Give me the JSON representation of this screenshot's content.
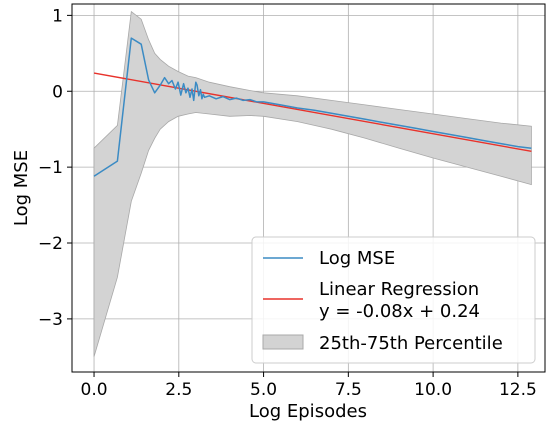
{
  "chart_data": {
    "type": "line",
    "xlabel": "Log Episodes",
    "ylabel": "Log MSE",
    "xlim": [
      -0.65,
      13.3
    ],
    "ylim": [
      -3.7,
      1.15
    ],
    "xticks": [
      0.0,
      2.5,
      5.0,
      7.5,
      10.0,
      12.5
    ],
    "xtick_labels": [
      "0.0",
      "2.5",
      "5.0",
      "7.5",
      "10.0",
      "12.5"
    ],
    "yticks": [
      1,
      0,
      -1,
      -2,
      -3
    ],
    "ytick_labels": [
      "1",
      "0",
      "−1",
      "−2",
      "−3"
    ],
    "grid": true,
    "legend_position": "bottom-right",
    "colors": {
      "mse": "#3b8bc4",
      "regression": "#e8322b",
      "band": "#d3d3d3",
      "band_edge": "#a8a8a8"
    },
    "series": [
      {
        "name": "Log MSE",
        "kind": "line",
        "x": [
          0.0,
          0.69,
          1.1,
          1.39,
          1.61,
          1.79,
          1.95,
          2.08,
          2.2,
          2.3,
          2.4,
          2.48,
          2.56,
          2.64,
          2.71,
          2.77,
          2.83,
          2.89,
          2.94,
          3.0,
          3.04,
          3.09,
          3.14,
          3.18,
          3.22,
          3.26,
          3.4,
          3.6,
          3.8,
          4.0,
          4.2,
          4.4,
          4.6,
          4.8,
          5.0,
          5.5,
          6.0,
          6.5,
          7.0,
          7.5,
          8.0,
          8.5,
          9.0,
          9.5,
          10.0,
          10.5,
          11.0,
          11.5,
          12.0,
          12.5,
          12.9
        ],
        "y": [
          -1.12,
          -0.92,
          0.7,
          0.62,
          0.15,
          -0.02,
          0.08,
          0.18,
          0.1,
          0.14,
          0.03,
          0.12,
          -0.05,
          0.1,
          -0.02,
          0.04,
          -0.08,
          0.03,
          -0.12,
          0.12,
          0.08,
          -0.06,
          0.02,
          -0.1,
          -0.04,
          -0.08,
          -0.06,
          -0.1,
          -0.07,
          -0.11,
          -0.09,
          -0.12,
          -0.11,
          -0.14,
          -0.14,
          -0.18,
          -0.22,
          -0.25,
          -0.29,
          -0.33,
          -0.37,
          -0.41,
          -0.45,
          -0.49,
          -0.53,
          -0.57,
          -0.61,
          -0.65,
          -0.69,
          -0.73,
          -0.75
        ]
      },
      {
        "name": "Linear Regression\ny = -0.08x + 0.24",
        "kind": "line",
        "slope": -0.08,
        "intercept": 0.24,
        "x": [
          0.0,
          12.9
        ],
        "y": [
          0.24,
          -0.792
        ]
      },
      {
        "name": "25th-75th Percentile",
        "kind": "band",
        "x": [
          0.0,
          0.69,
          1.1,
          1.39,
          1.61,
          1.79,
          1.95,
          2.2,
          2.48,
          2.77,
          3.0,
          3.4,
          4.0,
          4.6,
          5.0,
          6.0,
          7.0,
          8.0,
          9.0,
          10.0,
          11.0,
          12.0,
          12.9
        ],
        "upper": [
          -0.75,
          -0.45,
          1.05,
          0.95,
          0.68,
          0.5,
          0.42,
          0.33,
          0.26,
          0.2,
          0.18,
          0.12,
          0.06,
          0.01,
          -0.02,
          -0.06,
          -0.12,
          -0.18,
          -0.24,
          -0.3,
          -0.36,
          -0.42,
          -0.46
        ],
        "lower": [
          -3.5,
          -2.45,
          -1.45,
          -1.08,
          -0.78,
          -0.62,
          -0.5,
          -0.4,
          -0.33,
          -0.3,
          -0.28,
          -0.3,
          -0.33,
          -0.32,
          -0.33,
          -0.4,
          -0.5,
          -0.62,
          -0.75,
          -0.88,
          -1.0,
          -1.12,
          -1.23
        ]
      }
    ]
  }
}
